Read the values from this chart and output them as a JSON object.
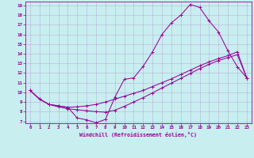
{
  "xlabel": "Windchill (Refroidissement éolien,°C)",
  "background_color": "#c8eef0",
  "line_color": "#990099",
  "grid_color": "#aaaacc",
  "spine_color": "#9900aa",
  "xlim": [
    -0.5,
    23.5
  ],
  "ylim": [
    6.8,
    19.4
  ],
  "xticks": [
    0,
    1,
    2,
    3,
    4,
    5,
    6,
    7,
    8,
    9,
    10,
    11,
    12,
    13,
    14,
    15,
    16,
    17,
    18,
    19,
    20,
    21,
    22,
    23
  ],
  "yticks": [
    7,
    8,
    9,
    10,
    11,
    12,
    13,
    14,
    15,
    16,
    17,
    18,
    19
  ],
  "line1_x": [
    0,
    1,
    2,
    3,
    4,
    5,
    6,
    7,
    8,
    9,
    10,
    11,
    12,
    13,
    14,
    15,
    16,
    17,
    18,
    19,
    20,
    21,
    22,
    23
  ],
  "line1_y": [
    10.2,
    9.3,
    8.75,
    8.6,
    8.45,
    7.35,
    7.15,
    6.85,
    7.2,
    9.5,
    11.35,
    11.5,
    12.7,
    14.2,
    16.0,
    17.2,
    18.0,
    19.1,
    18.8,
    17.4,
    16.25,
    14.3,
    12.65,
    11.5
  ],
  "line2_x": [
    0,
    1,
    2,
    3,
    4,
    5,
    6,
    7,
    8,
    9,
    10,
    11,
    12,
    13,
    14,
    15,
    16,
    17,
    18,
    19,
    20,
    21,
    22,
    23
  ],
  "line2_y": [
    10.2,
    9.3,
    8.75,
    8.6,
    8.45,
    8.5,
    8.6,
    8.75,
    9.0,
    9.3,
    9.6,
    9.9,
    10.2,
    10.6,
    11.0,
    11.4,
    11.85,
    12.3,
    12.75,
    13.15,
    13.5,
    13.8,
    14.2,
    11.5
  ],
  "line3_x": [
    0,
    1,
    2,
    3,
    4,
    5,
    6,
    7,
    8,
    9,
    10,
    11,
    12,
    13,
    14,
    15,
    16,
    17,
    18,
    19,
    20,
    21,
    22,
    23
  ],
  "line3_y": [
    10.2,
    9.3,
    8.75,
    8.5,
    8.3,
    8.2,
    8.1,
    8.0,
    7.95,
    8.15,
    8.55,
    9.0,
    9.45,
    9.95,
    10.45,
    10.95,
    11.45,
    11.95,
    12.45,
    12.9,
    13.3,
    13.6,
    13.9,
    11.5
  ]
}
